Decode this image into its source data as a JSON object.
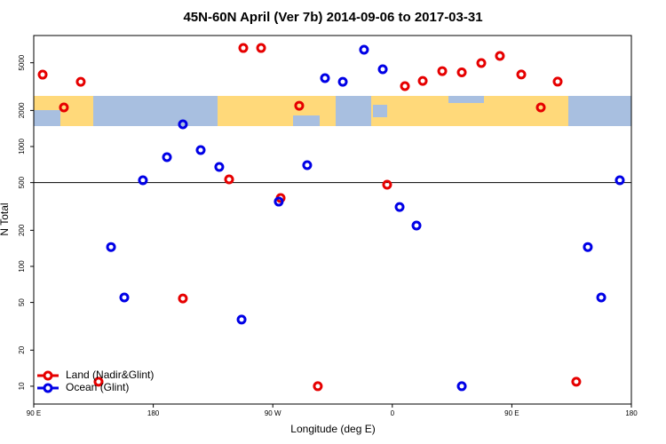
{
  "chart_data": {
    "type": "scatter",
    "title": "45N-60N April (Ver 7b)   2014-09-06 to 2017-03-31",
    "x_label": "Longitude (deg E)",
    "y_label": "N Total",
    "xlim": [
      90,
      540
    ],
    "ylim": [
      7.1,
      8440
    ],
    "log_y": true,
    "xticks": [
      {
        "value": 90,
        "label": "90 E"
      },
      {
        "value": 180,
        "label": "180"
      },
      {
        "value": 270,
        "label": "90 W"
      },
      {
        "value": 360,
        "label": "0"
      },
      {
        "value": 450,
        "label": "90 E"
      },
      {
        "value": 540,
        "label": "180"
      }
    ],
    "yticks": [
      10,
      20,
      50,
      100,
      200,
      500,
      1000,
      2000,
      5000
    ],
    "hline": 500,
    "legend": "bottomleft",
    "series": [
      {
        "name": "Land (Nadir&Glint)",
        "color": "#e60000",
        "x": [
          96.7,
          112.7,
          125.4,
          138.8,
          202.3,
          237.1,
          247.8,
          261.2,
          275.9,
          289.9,
          303.9,
          356.1,
          369.5,
          382.9,
          397.6,
          412.3,
          427.0,
          441.0,
          457.1,
          471.8,
          484.5,
          498.5
        ],
        "values": [
          3980,
          2120,
          3470,
          10.9,
          54,
          532,
          6640,
          6640,
          372,
          2190,
          10,
          480,
          3190,
          3530,
          4260,
          4160,
          4970,
          5700,
          3990,
          2120,
          3480,
          10.9
        ]
      },
      {
        "name": "Ocean (Glint)",
        "color": "#0000e6",
        "x": [
          148.2,
          158.2,
          172.2,
          190.3,
          202.3,
          215.7,
          229.7,
          246.5,
          274.5,
          295.9,
          309.3,
          322.7,
          338.7,
          352.8,
          365.5,
          378.2,
          412.3,
          507.2,
          517.3,
          531.3
        ],
        "values": [
          145,
          55,
          523,
          815,
          1532,
          934,
          676,
          36,
          347,
          699,
          3720,
          3470,
          6420,
          4410,
          313,
          219,
          10,
          145,
          55,
          523
        ]
      }
    ]
  }
}
